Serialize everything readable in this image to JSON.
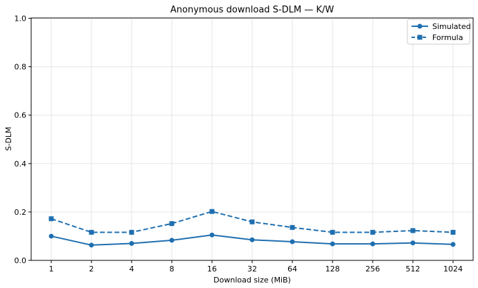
{
  "chart_data": {
    "type": "line",
    "title": "Anonymous download S-DLM — K/W",
    "xlabel": "Download size (MiB)",
    "ylabel": "S-DLM",
    "categories": [
      "1",
      "2",
      "4",
      "8",
      "16",
      "32",
      "64",
      "128",
      "256",
      "512",
      "1024"
    ],
    "ylim": [
      0,
      1.0
    ],
    "yticks": [
      "0.0",
      "0.2",
      "0.4",
      "0.6",
      "0.8",
      "1.0"
    ],
    "grid": true,
    "legend_position": "top-right",
    "series": [
      {
        "name": "Simulated",
        "values": [
          0.1,
          0.063,
          0.07,
          0.083,
          0.105,
          0.085,
          0.077,
          0.068,
          0.068,
          0.072,
          0.066
        ],
        "color": "#1f6fb0",
        "line_style": "solid",
        "marker": "circle"
      },
      {
        "name": "Formula",
        "values": [
          0.172,
          0.116,
          0.116,
          0.152,
          0.202,
          0.159,
          0.136,
          0.116,
          0.116,
          0.123,
          0.116
        ],
        "color": "#1f6fb0",
        "line_style": "dashed",
        "marker": "square"
      }
    ]
  }
}
